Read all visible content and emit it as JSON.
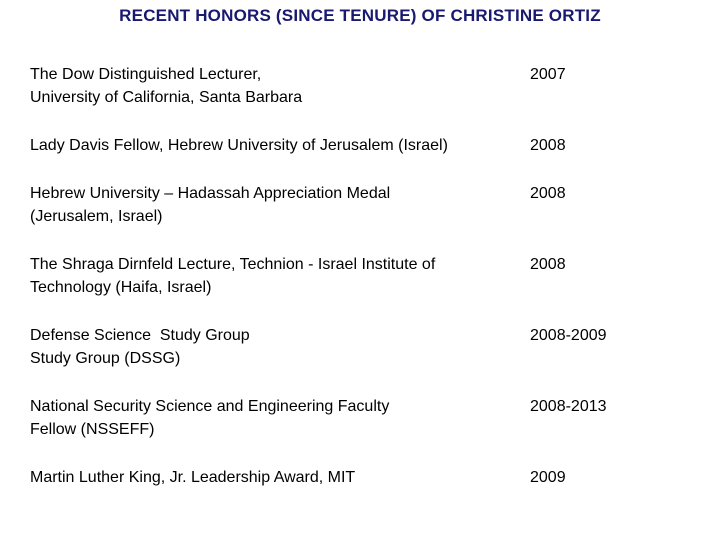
{
  "slide": {
    "title": "RECENT HONORS (SINCE TENURE) OF CHRISTINE ORTIZ",
    "title_color": "#191970",
    "background_color": "#ffffff",
    "text_color": "#000000",
    "honors": [
      {
        "text": "The Dow Distinguished Lecturer,\nUniversity of California, Santa Barbara",
        "year": "2007"
      },
      {
        "text": "Lady Davis Fellow, Hebrew University of Jerusalem (Israel)",
        "year": "2008"
      },
      {
        "text": "Hebrew University – Hadassah Appreciation Medal\n(Jerusalem, Israel)",
        "year": "2008"
      },
      {
        "text": "The Shraga Dirnfeld Lecture, Technion - Israel Institute of\nTechnology (Haifa, Israel)",
        "year": "2008"
      },
      {
        "text": "Defense Science  Study Group\nStudy Group (DSSG)",
        "year": "2008-2009"
      },
      {
        "text": "National Security Science and Engineering Faculty\nFellow (NSSEFF)",
        "year": "2008-2013"
      },
      {
        "text": "Martin Luther King, Jr. Leadership Award, MIT",
        "year": "2009"
      }
    ]
  }
}
